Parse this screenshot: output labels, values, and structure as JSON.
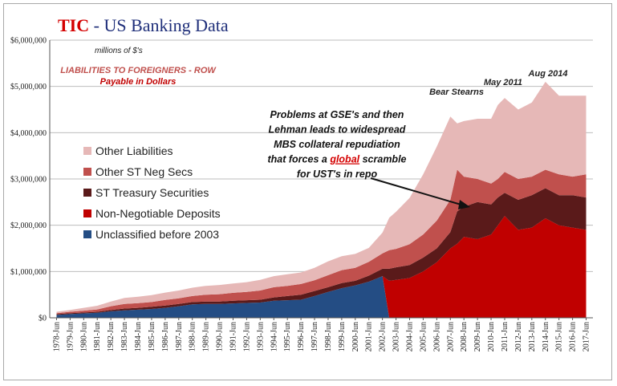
{
  "title": {
    "part1": "TIC",
    "part2": " - US Banking Data"
  },
  "chart_data": {
    "type": "area",
    "stacked": true,
    "units_note": "millions of $'s",
    "subtitle_line1": "LIABILITIES TO FOREIGNERS  - ROW",
    "subtitle_line2": "Payable  in Dollars",
    "y_ticks": [
      "$0",
      "$1,000,000",
      "$2,000,000",
      "$3,000,000",
      "$4,000,000",
      "$5,000,000",
      "$6,000,000"
    ],
    "ylim": [
      0,
      6000000
    ],
    "x_ticks": [
      "1978-Jun",
      "1979-Jun",
      "1980-Jun",
      "1981-Jun",
      "1982-Jun",
      "1983-Jun",
      "1984-Jun",
      "1985-Jun",
      "1986-Jun",
      "1987-Jun",
      "1988-Jun",
      "1989-Jun",
      "1990-Jun",
      "1991-Jun",
      "1992-Jun",
      "1993-Jun",
      "1994-Jun",
      "1995-Jun",
      "1996-Jun",
      "1997-Jun",
      "1998-Jun",
      "1999-Jun",
      "2000-Jun",
      "2001-Jun",
      "2002-Jun",
      "2003-Jun",
      "2004-Jun",
      "2005-Jun",
      "2006-Jun",
      "2007-Jun",
      "2008-Jun",
      "2009-Jun",
      "2010-Jun",
      "2011-Jun",
      "2012-Jun",
      "2013-Jun",
      "2014-Jun",
      "2015-Jun",
      "2016-Jun",
      "2017-Jun"
    ],
    "x": [
      1978.5,
      1979.5,
      1980.5,
      1981.5,
      1982.5,
      1983.5,
      1984.5,
      1985.5,
      1986.5,
      1987.5,
      1988.5,
      1989.5,
      1990.5,
      1991.5,
      1992.5,
      1993.5,
      1994.5,
      1995.5,
      1996.5,
      1997.5,
      1998.5,
      1999.5,
      2000.5,
      2001.5,
      2002.5,
      2003.0,
      2003.5,
      2004.5,
      2005.5,
      2006.5,
      2007.5,
      2008.0,
      2008.5,
      2009.5,
      2010.5,
      2011.0,
      2011.5,
      2012.5,
      2013.5,
      2014.5,
      2015.5,
      2016.5,
      2017.5
    ],
    "grid": true,
    "legend_position": "left",
    "series": [
      {
        "name": "Unclassified before 2003",
        "color": "#244d84",
        "values": [
          60000,
          80000,
          95000,
          110000,
          140000,
          160000,
          175000,
          190000,
          215000,
          250000,
          290000,
          300000,
          300000,
          310000,
          320000,
          330000,
          370000,
          380000,
          390000,
          470000,
          560000,
          640000,
          700000,
          780000,
          900000,
          0,
          0,
          0,
          0,
          0,
          0,
          0,
          0,
          0,
          0,
          0,
          0,
          0,
          0,
          0,
          0,
          0,
          0
        ]
      },
      {
        "name": "Non-Negotiable Deposits",
        "color": "#c00000",
        "values": [
          0,
          0,
          0,
          0,
          0,
          0,
          0,
          0,
          0,
          0,
          0,
          0,
          0,
          0,
          0,
          0,
          0,
          0,
          0,
          0,
          0,
          0,
          0,
          0,
          0,
          800000,
          820000,
          860000,
          1000000,
          1200000,
          1500000,
          1600000,
          1750000,
          1700000,
          1800000,
          2000000,
          2200000,
          1900000,
          1950000,
          2150000,
          2000000,
          1950000,
          1900000
        ]
      },
      {
        "name": "ST Treasury Securities",
        "color": "#5a1a1a",
        "values": [
          20000,
          20000,
          20000,
          20000,
          30000,
          40000,
          40000,
          50000,
          50000,
          50000,
          50000,
          50000,
          50000,
          60000,
          60000,
          60000,
          70000,
          90000,
          110000,
          110000,
          100000,
          110000,
          100000,
          130000,
          160000,
          260000,
          270000,
          280000,
          300000,
          300000,
          350000,
          700000,
          650000,
          800000,
          650000,
          600000,
          500000,
          650000,
          700000,
          650000,
          650000,
          700000,
          700000
        ]
      },
      {
        "name": "Other ST Neg Secs",
        "color": "#c0504d",
        "values": [
          20000,
          30000,
          40000,
          50000,
          80000,
          100000,
          100000,
          100000,
          120000,
          120000,
          130000,
          150000,
          160000,
          170000,
          180000,
          200000,
          220000,
          220000,
          230000,
          230000,
          260000,
          280000,
          280000,
          300000,
          330000,
          400000,
          400000,
          450000,
          500000,
          600000,
          700000,
          900000,
          650000,
          500000,
          450000,
          400000,
          450000,
          450000,
          400000,
          400000,
          450000,
          400000,
          500000
        ]
      },
      {
        "name": "Other Liabilities",
        "color": "#e6b8b7",
        "values": [
          30000,
          40000,
          60000,
          80000,
          100000,
          130000,
          140000,
          150000,
          160000,
          170000,
          180000,
          190000,
          200000,
          200000,
          210000,
          230000,
          240000,
          250000,
          250000,
          270000,
          300000,
          300000,
          300000,
          300000,
          450000,
          700000,
          800000,
          1000000,
          1300000,
          1600000,
          1800000,
          1000000,
          1200000,
          1300000,
          1400000,
          1600000,
          1600000,
          1500000,
          1600000,
          1900000,
          1700000,
          1750000,
          1700000
        ]
      }
    ],
    "events": [
      {
        "label": "Bear Stearns",
        "x": 2008.0
      },
      {
        "label": "May 2011",
        "x": 2011.0
      },
      {
        "label": "Aug 2014",
        "x": 2014.6
      }
    ],
    "annotation_lines": [
      [
        {
          "t": "Problems at GSE's and then"
        }
      ],
      [
        {
          "t": "Lehman leads to widespread"
        }
      ],
      [
        {
          "t": "MBS collateral repudiation"
        }
      ],
      [
        {
          "t": "that forces a "
        },
        {
          "t": "global",
          "em": true
        },
        {
          "t": " scramble"
        }
      ],
      [
        {
          "t": "for UST's in repo"
        }
      ]
    ],
    "colors": {
      "accent_red": "#d40000",
      "title_blue": "#1f2f7a",
      "subtitle_red": "#c0504d"
    }
  }
}
